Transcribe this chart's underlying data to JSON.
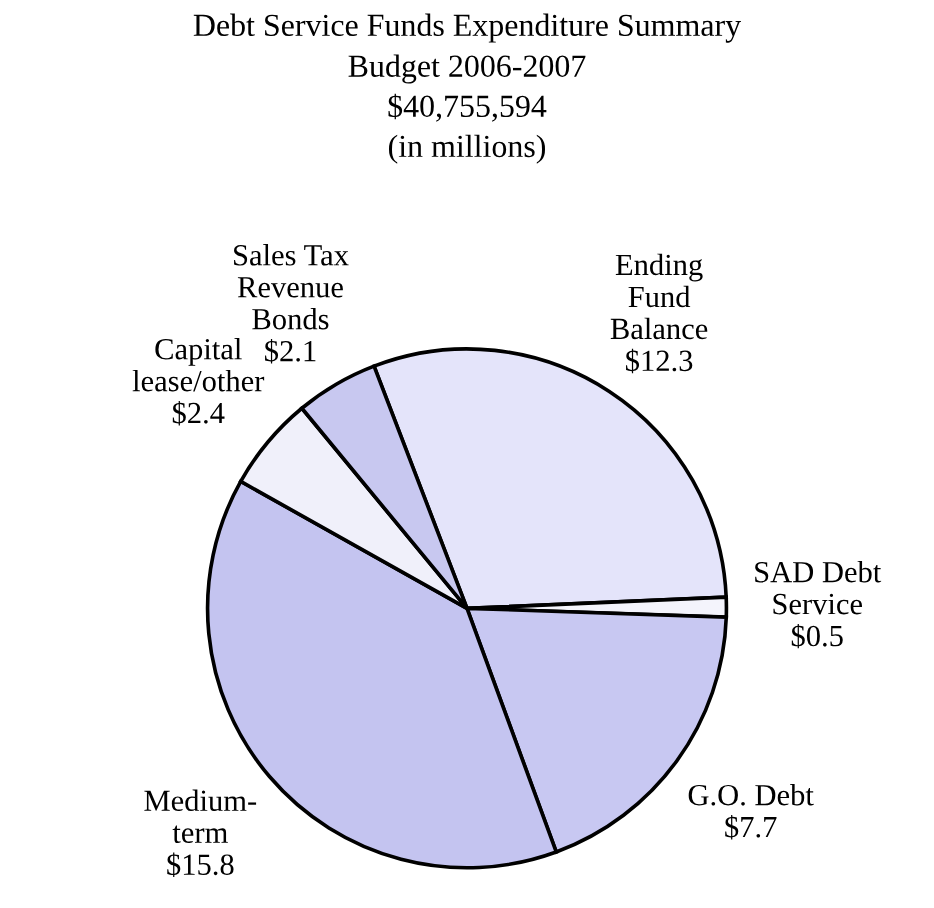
{
  "chart_data": {
    "type": "pie",
    "title": "Debt Service Funds Expenditure Summary",
    "subtitle": "Budget 2006-2007\n$40,755,594\n(in millions)",
    "categories": [
      "Ending\nFund\nBalance",
      "SAD Debt\nService",
      "G.O. Debt",
      "Medium-\nterm",
      "Capital\nlease/other",
      "Sales Tax\nRevenue\nBonds"
    ],
    "values": [
      12.3,
      0.5,
      7.7,
      15.8,
      2.4,
      2.1
    ],
    "value_labels": [
      "$12.3",
      "$0.5",
      "$7.7",
      "$15.8",
      "$2.4",
      "$2.1"
    ],
    "colors": [
      "#e4e4fa",
      "#f4f4fc",
      "#c8c8f2",
      "#c4c4f0",
      "#f0f0fa",
      "#c8c8f0"
    ],
    "legend": false
  }
}
